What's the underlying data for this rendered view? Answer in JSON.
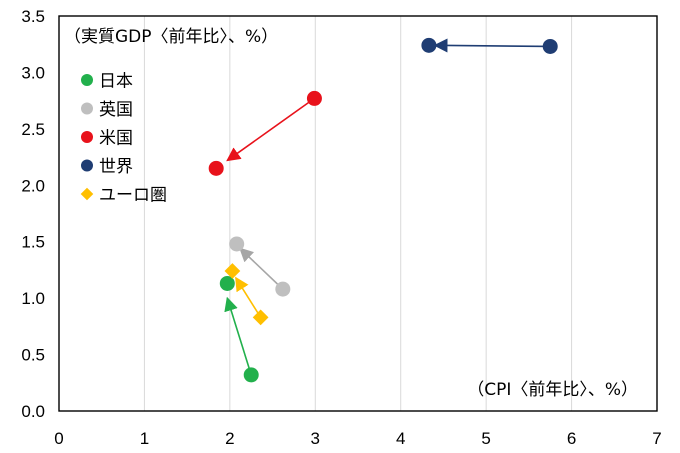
{
  "chart_data": {
    "type": "scatter",
    "title": "",
    "ylabel": "（実質GDP〈前年比〉、%）",
    "xlabel": "（CPI〈前年比〉、%）",
    "xlim": [
      0,
      7
    ],
    "ylim": [
      0,
      3.5
    ],
    "xticks": [
      "0",
      "1",
      "2",
      "3",
      "4",
      "5",
      "6",
      "7"
    ],
    "yticks": [
      "0.0",
      "0.5",
      "1.0",
      "1.5",
      "2.0",
      "2.5",
      "3.0",
      "3.5"
    ],
    "grid": "vertical",
    "legend_position": "top-left",
    "series": [
      {
        "name": "日本",
        "marker": "circle",
        "color": "#22b04c",
        "points": [
          {
            "x": 2.25,
            "y": 0.32
          },
          {
            "x": 1.97,
            "y": 1.13
          }
        ],
        "arrow_from": {
          "x": 2.25,
          "y": 0.32
        },
        "arrow_to": {
          "x": 1.97,
          "y": 1.0
        }
      },
      {
        "name": "英国",
        "marker": "circle",
        "color": "#bfbfbf",
        "points": [
          {
            "x": 2.62,
            "y": 1.08
          },
          {
            "x": 2.08,
            "y": 1.48
          }
        ],
        "arrow_from": {
          "x": 2.62,
          "y": 1.08
        },
        "arrow_to": {
          "x": 2.12,
          "y": 1.44
        }
      },
      {
        "name": "米国",
        "marker": "circle",
        "color": "#e8121b",
        "points": [
          {
            "x": 2.99,
            "y": 2.77
          },
          {
            "x": 1.84,
            "y": 2.15
          }
        ],
        "arrow_from": {
          "x": 2.99,
          "y": 2.77
        },
        "arrow_to": {
          "x": 1.97,
          "y": 2.22
        }
      },
      {
        "name": "世界",
        "marker": "circle",
        "color": "#1f3d73",
        "points": [
          {
            "x": 5.75,
            "y": 3.23
          },
          {
            "x": 4.33,
            "y": 3.24
          }
        ],
        "arrow_from": {
          "x": 5.75,
          "y": 3.23
        },
        "arrow_to": {
          "x": 4.4,
          "y": 3.24
        }
      },
      {
        "name": "ユーロ圏",
        "marker": "diamond",
        "color": "#ffbf00",
        "points": [
          {
            "x": 2.36,
            "y": 0.83
          },
          {
            "x": 2.03,
            "y": 1.24
          }
        ],
        "arrow_from": {
          "x": 2.36,
          "y": 0.83
        },
        "arrow_to": {
          "x": 2.07,
          "y": 1.18
        }
      }
    ]
  }
}
